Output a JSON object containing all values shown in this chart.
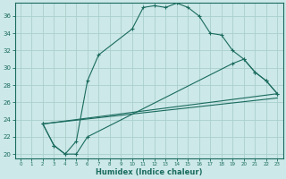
{
  "xlabel": "Humidex (Indice chaleur)",
  "bg_color": "#cce8e8",
  "grid_color": "#aad0cc",
  "line_color": "#1a6b5e",
  "xlim": [
    -0.5,
    23.5
  ],
  "ylim": [
    19.5,
    37.5
  ],
  "yticks": [
    20,
    22,
    24,
    26,
    28,
    30,
    32,
    34,
    36
  ],
  "xticks": [
    0,
    1,
    2,
    3,
    4,
    5,
    6,
    7,
    8,
    9,
    10,
    11,
    12,
    13,
    14,
    15,
    16,
    17,
    18,
    19,
    20,
    21,
    22,
    23
  ],
  "line1_x": [
    2,
    3,
    4,
    5,
    6,
    7,
    10,
    11,
    12,
    13,
    14,
    15,
    16,
    17,
    18,
    19,
    20,
    21,
    22,
    23
  ],
  "line1_y": [
    23.5,
    21.0,
    20.0,
    21.5,
    28.5,
    31.5,
    34.5,
    37.0,
    37.2,
    37.0,
    37.5,
    37.0,
    36.0,
    34.0,
    33.8,
    32.0,
    31.0,
    29.5,
    28.5,
    27.0
  ],
  "line2_x": [
    2,
    3,
    4,
    5,
    6,
    19,
    20,
    21,
    22,
    23
  ],
  "line2_y": [
    23.5,
    21.0,
    20.0,
    20.0,
    22.0,
    30.5,
    31.0,
    29.5,
    28.5,
    27.0
  ],
  "line3_x": [
    2,
    23
  ],
  "line3_y": [
    23.5,
    27.0
  ],
  "line4_x": [
    2,
    23
  ],
  "line4_y": [
    23.5,
    26.5
  ]
}
